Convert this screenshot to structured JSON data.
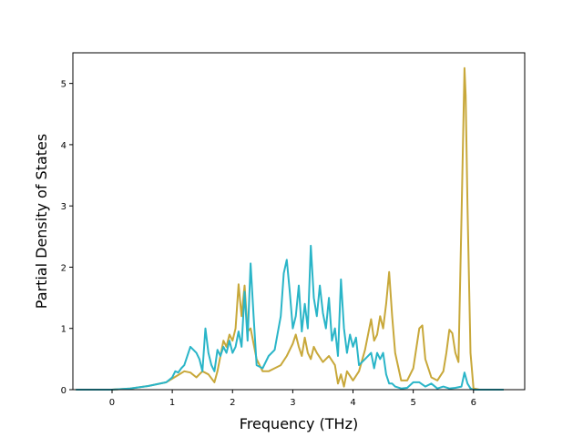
{
  "chart_data": {
    "type": "line",
    "xlabel": "Frequency (THz)",
    "ylabel": "Partial Density of States",
    "xlim": [
      -0.65,
      6.85
    ],
    "ylim": [
      0,
      5.5
    ],
    "x_ticks": [
      0,
      1,
      2,
      3,
      4,
      5,
      6
    ],
    "y_ticks": [
      0,
      1,
      2,
      3,
      4,
      5
    ],
    "grid": false,
    "series": [
      {
        "color": "#c8a83a",
        "x": [
          -0.6,
          0.0,
          0.3,
          0.6,
          0.9,
          1.0,
          1.1,
          1.2,
          1.3,
          1.4,
          1.5,
          1.6,
          1.7,
          1.75,
          1.8,
          1.85,
          1.9,
          1.95,
          2.0,
          2.05,
          2.1,
          2.15,
          2.2,
          2.25,
          2.3,
          2.4,
          2.5,
          2.6,
          2.7,
          2.8,
          2.9,
          3.0,
          3.05,
          3.1,
          3.15,
          3.2,
          3.25,
          3.3,
          3.35,
          3.4,
          3.5,
          3.6,
          3.7,
          3.75,
          3.8,
          3.85,
          3.9,
          4.0,
          4.1,
          4.2,
          4.3,
          4.35,
          4.4,
          4.45,
          4.5,
          4.55,
          4.6,
          4.65,
          4.7,
          4.8,
          4.9,
          5.0,
          5.1,
          5.15,
          5.2,
          5.3,
          5.4,
          5.5,
          5.55,
          5.6,
          5.65,
          5.7,
          5.75,
          5.8,
          5.85,
          5.87,
          5.9,
          5.95,
          6.0,
          6.1,
          6.5
        ],
        "y": [
          0.0,
          0.0,
          0.02,
          0.06,
          0.12,
          0.18,
          0.24,
          0.3,
          0.28,
          0.2,
          0.3,
          0.25,
          0.12,
          0.3,
          0.55,
          0.8,
          0.7,
          0.9,
          0.8,
          1.0,
          1.72,
          1.2,
          1.7,
          0.95,
          1.0,
          0.5,
          0.3,
          0.3,
          0.35,
          0.4,
          0.55,
          0.75,
          0.9,
          0.7,
          0.55,
          0.85,
          0.6,
          0.5,
          0.7,
          0.6,
          0.45,
          0.55,
          0.4,
          0.1,
          0.25,
          0.05,
          0.3,
          0.15,
          0.3,
          0.65,
          1.15,
          0.8,
          0.9,
          1.2,
          1.0,
          1.4,
          1.92,
          1.2,
          0.6,
          0.15,
          0.15,
          0.35,
          1.0,
          1.05,
          0.5,
          0.2,
          0.15,
          0.3,
          0.6,
          0.98,
          0.92,
          0.6,
          0.45,
          2.8,
          5.25,
          4.8,
          3.0,
          0.6,
          0.02,
          0.0,
          0.0
        ]
      },
      {
        "color": "#2ab5c8",
        "x": [
          -0.6,
          0.0,
          0.3,
          0.6,
          0.9,
          1.0,
          1.05,
          1.1,
          1.15,
          1.2,
          1.3,
          1.4,
          1.45,
          1.5,
          1.55,
          1.6,
          1.65,
          1.7,
          1.75,
          1.8,
          1.85,
          1.9,
          1.95,
          2.0,
          2.05,
          2.1,
          2.15,
          2.2,
          2.25,
          2.3,
          2.35,
          2.4,
          2.5,
          2.6,
          2.7,
          2.8,
          2.85,
          2.9,
          2.95,
          3.0,
          3.05,
          3.1,
          3.15,
          3.2,
          3.25,
          3.3,
          3.35,
          3.4,
          3.45,
          3.5,
          3.55,
          3.6,
          3.65,
          3.7,
          3.75,
          3.8,
          3.85,
          3.9,
          3.95,
          4.0,
          4.05,
          4.1,
          4.2,
          4.3,
          4.35,
          4.4,
          4.45,
          4.5,
          4.55,
          4.6,
          4.65,
          4.7,
          4.8,
          4.9,
          5.0,
          5.1,
          5.2,
          5.3,
          5.4,
          5.5,
          5.6,
          5.7,
          5.8,
          5.85,
          5.9,
          5.95,
          6.0,
          6.1,
          6.5
        ],
        "y": [
          0.0,
          0.0,
          0.02,
          0.06,
          0.12,
          0.2,
          0.3,
          0.28,
          0.35,
          0.4,
          0.7,
          0.6,
          0.5,
          0.3,
          1.0,
          0.6,
          0.4,
          0.3,
          0.65,
          0.55,
          0.7,
          0.6,
          0.8,
          0.6,
          0.7,
          0.95,
          0.7,
          1.6,
          0.8,
          2.06,
          1.2,
          0.4,
          0.35,
          0.55,
          0.65,
          1.2,
          1.9,
          2.12,
          1.6,
          1.0,
          1.2,
          1.7,
          0.95,
          1.4,
          1.0,
          2.35,
          1.5,
          1.2,
          1.7,
          1.25,
          1.0,
          1.5,
          0.8,
          1.0,
          0.55,
          1.8,
          1.0,
          0.6,
          0.9,
          0.7,
          0.85,
          0.4,
          0.5,
          0.6,
          0.35,
          0.6,
          0.5,
          0.6,
          0.25,
          0.1,
          0.1,
          0.05,
          0.02,
          0.03,
          0.12,
          0.12,
          0.05,
          0.1,
          0.02,
          0.05,
          0.02,
          0.03,
          0.05,
          0.28,
          0.1,
          0.02,
          0.0,
          0.0,
          0.0
        ]
      }
    ]
  }
}
